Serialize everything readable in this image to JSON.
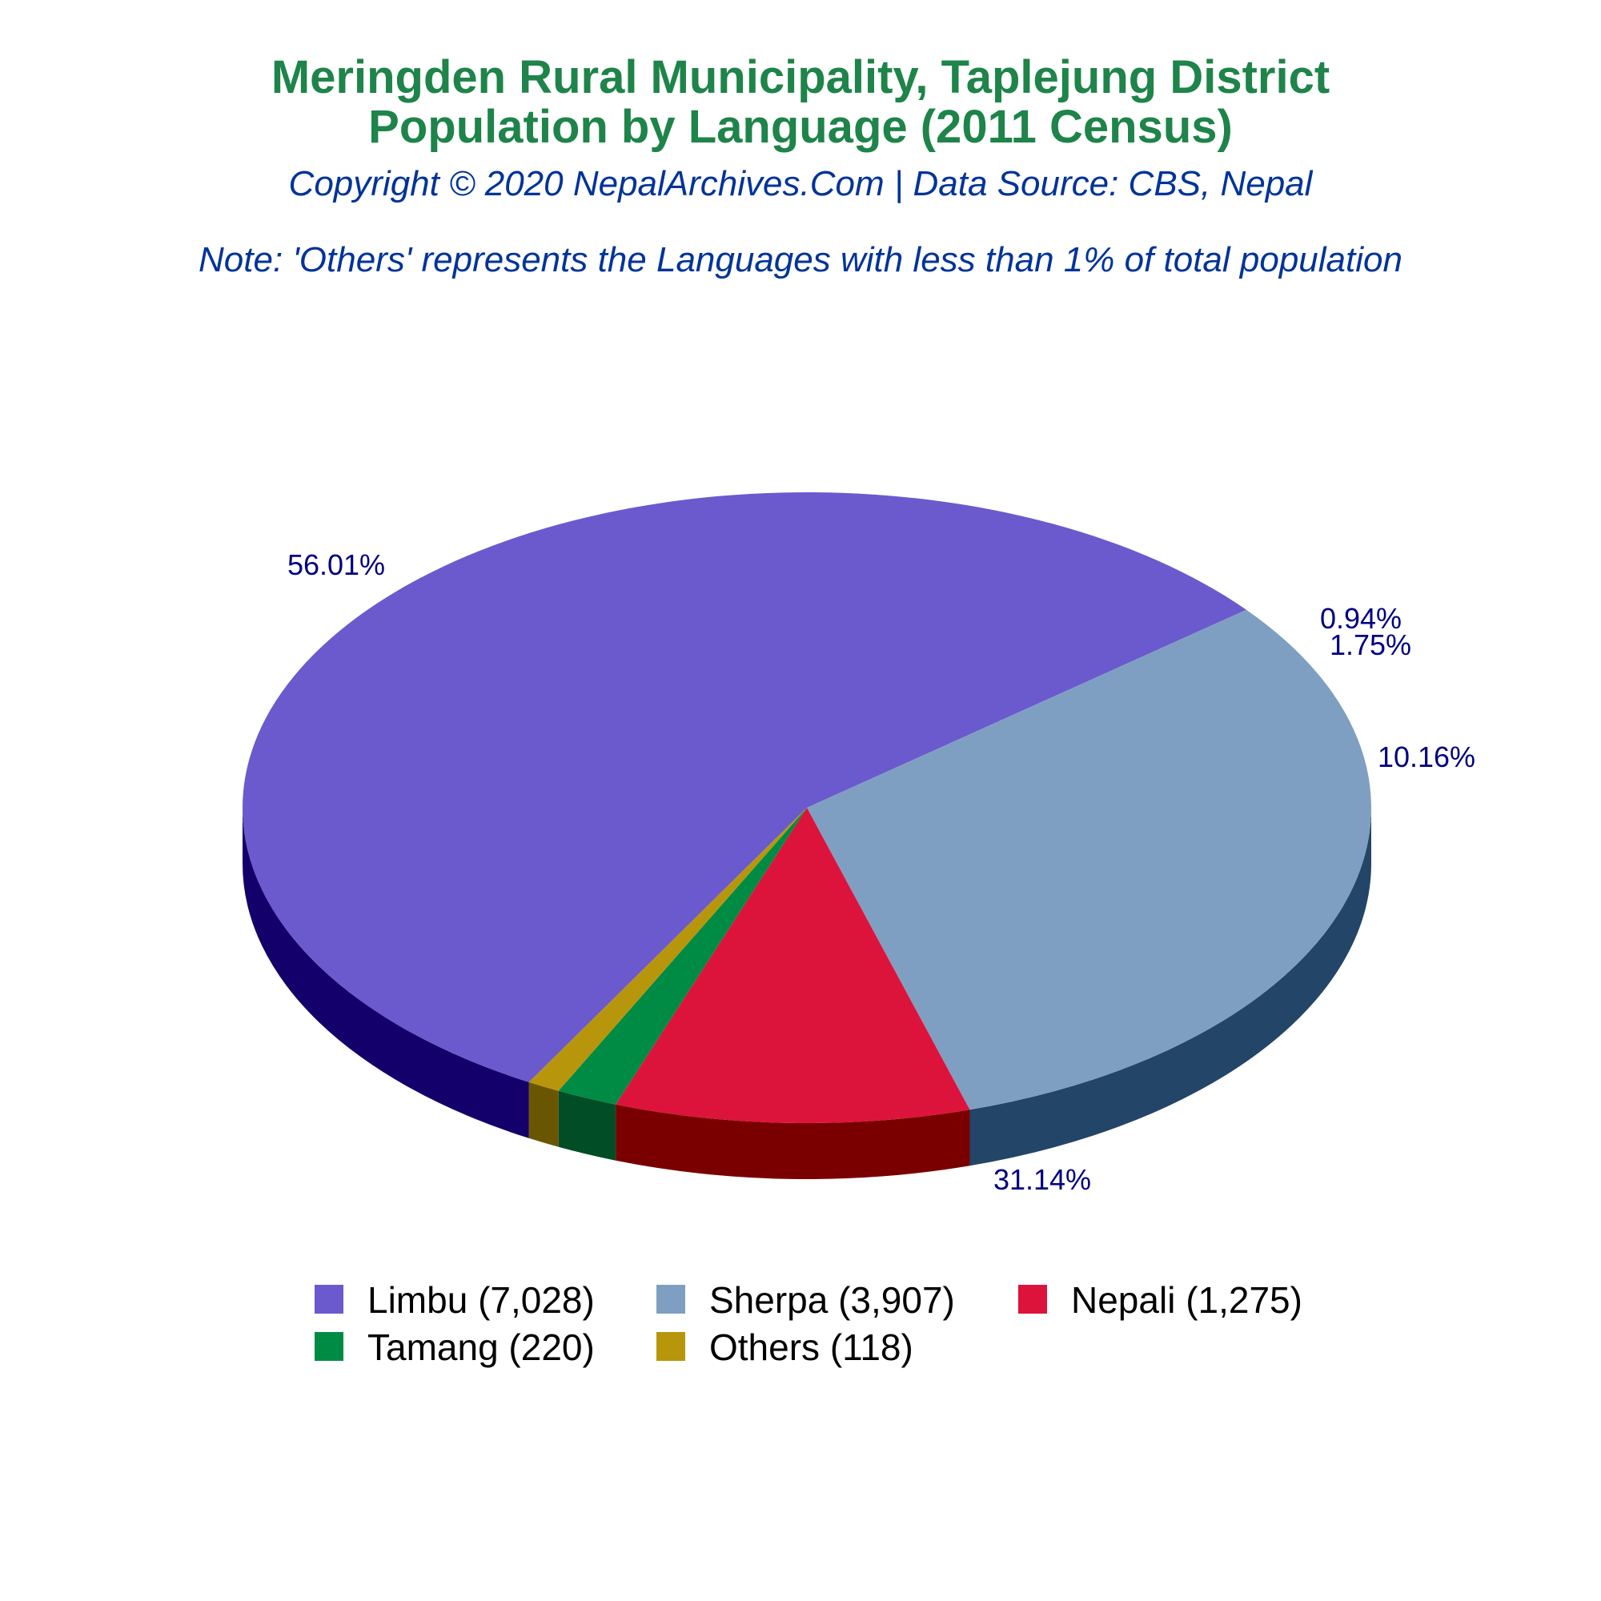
{
  "title_line1": "Meringden Rural Municipality, Taplejung District",
  "title_line2": "Population by Language (2011 Census)",
  "subtitle": "Copyright © 2020 NepalArchives.Com | Data Source: CBS, Nepal",
  "note": "Note: 'Others' represents the Languages with less than 1% of total population",
  "colors": {
    "title": "#1e8449",
    "subtitle": "#003399",
    "label": "#000080"
  },
  "chart_data": {
    "type": "pie",
    "title": "Meringden Rural Municipality, Taplejung District Population by Language (2011 Census)",
    "legend_position": "bottom",
    "slices": [
      {
        "name": "Limbu",
        "value": 7028,
        "percent_label": "56.01%",
        "legend_label": "Limbu (7,028)",
        "color": "#6a5acd",
        "side_color": "#14006a"
      },
      {
        "name": "Sherpa",
        "value": 3907,
        "percent_label": "31.14%",
        "legend_label": "Sherpa (3,907)",
        "color": "#7f9fc2",
        "side_color": "#234567"
      },
      {
        "name": "Nepali",
        "value": 1275,
        "percent_label": "10.16%",
        "legend_label": "Nepali (1,275)",
        "color": "#dc143c",
        "side_color": "#7a0000"
      },
      {
        "name": "Tamang",
        "value": 220,
        "percent_label": "1.75%",
        "legend_label": "Tamang (220)",
        "color": "#008b45",
        "side_color": "#004d26"
      },
      {
        "name": "Others",
        "value": 118,
        "percent_label": "0.94%",
        "legend_label": "Others (118)",
        "color": "#b8960c",
        "side_color": "#6b5600"
      }
    ]
  }
}
